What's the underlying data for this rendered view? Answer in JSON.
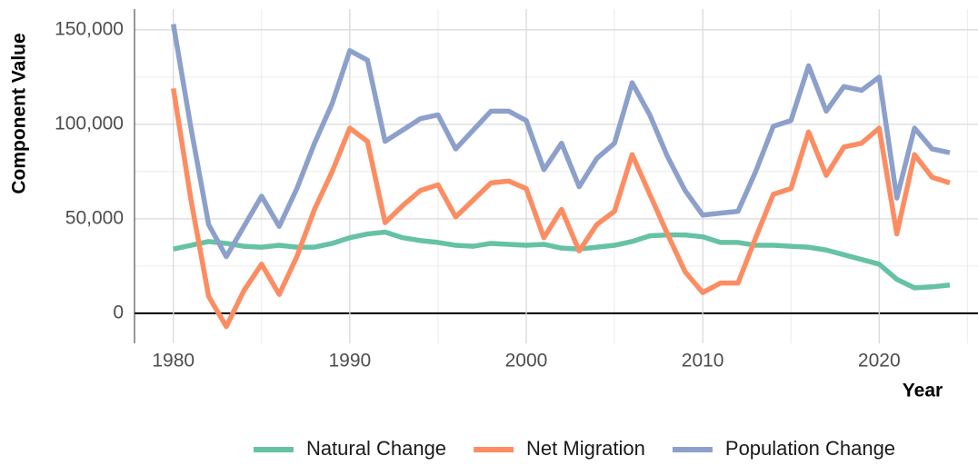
{
  "chart_data": {
    "type": "line",
    "x_label": "Year",
    "y_label": "Component Value",
    "x": [
      1980,
      1981,
      1982,
      1983,
      1984,
      1985,
      1986,
      1987,
      1988,
      1989,
      1990,
      1991,
      1992,
      1993,
      1994,
      1995,
      1996,
      1997,
      1998,
      1999,
      2000,
      2001,
      2002,
      2003,
      2004,
      2005,
      2006,
      2007,
      2008,
      2009,
      2010,
      2011,
      2012,
      2013,
      2014,
      2015,
      2016,
      2017,
      2018,
      2019,
      2020,
      2021,
      2022,
      2023,
      2024
    ],
    "series": [
      {
        "name": "Natural Change",
        "color": "#66c2a5",
        "values": [
          34000,
          36000,
          38000,
          37000,
          35500,
          35000,
          36000,
          35000,
          35000,
          37000,
          40000,
          42000,
          43000,
          40000,
          38500,
          37500,
          36000,
          35500,
          37000,
          36500,
          36000,
          36500,
          34500,
          34000,
          35000,
          36000,
          38000,
          41000,
          41500,
          41500,
          40500,
          37500,
          37500,
          36000,
          36000,
          35500,
          35000,
          33500,
          31000,
          28500,
          26000,
          18000,
          13500,
          14000,
          15000
        ]
      },
      {
        "name": "Net Migration",
        "color": "#fc8d62",
        "values": [
          119000,
          60000,
          9000,
          -7000,
          12000,
          26000,
          10000,
          30000,
          55000,
          75000,
          98000,
          91000,
          48000,
          57000,
          65000,
          68000,
          51000,
          60000,
          69000,
          70000,
          66000,
          40000,
          55000,
          33000,
          47000,
          54000,
          84000,
          63000,
          42000,
          22000,
          11000,
          16000,
          16000,
          40000,
          63000,
          66000,
          96000,
          73000,
          88000,
          90000,
          98000,
          42000,
          84000,
          72000,
          69000
        ]
      },
      {
        "name": "Population Change",
        "color": "#8da0cb",
        "values": [
          153000,
          98000,
          47000,
          30000,
          46000,
          62000,
          46000,
          66000,
          90000,
          111000,
          139000,
          134000,
          91000,
          97000,
          103000,
          105000,
          87000,
          97000,
          107000,
          107000,
          102000,
          76000,
          90000,
          67000,
          82000,
          90000,
          122000,
          105000,
          83000,
          65000,
          52000,
          53000,
          54000,
          75000,
          99000,
          102000,
          131000,
          107000,
          120000,
          118000,
          125000,
          61000,
          98000,
          87000,
          85000
        ]
      }
    ],
    "xlim": [
      1977.8,
      2025.6
    ],
    "ylim": [
      -15900,
      161000
    ],
    "xticks": [
      1980,
      1990,
      2000,
      2010,
      2020
    ],
    "yticks": [
      0,
      {
        "value": 50000,
        "label": "50,000"
      },
      {
        "value": 100000,
        "label": "100,000"
      },
      {
        "value": 150000,
        "label": "150,000"
      }
    ],
    "grid": true,
    "legend": "bottom"
  }
}
